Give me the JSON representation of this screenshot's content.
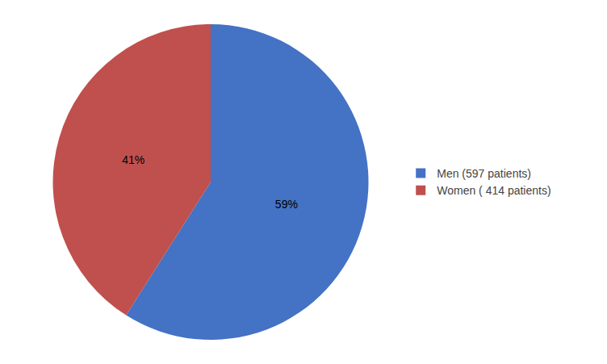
{
  "chart_data": {
    "type": "pie",
    "categories": [
      "Men (597 patients)",
      "Women ( 414 patients)"
    ],
    "values": [
      59,
      41
    ],
    "value_labels": [
      "59%",
      "41%"
    ],
    "colors": [
      "#4472C4",
      "#C0504D"
    ],
    "data_labels": true,
    "legend": "right"
  }
}
